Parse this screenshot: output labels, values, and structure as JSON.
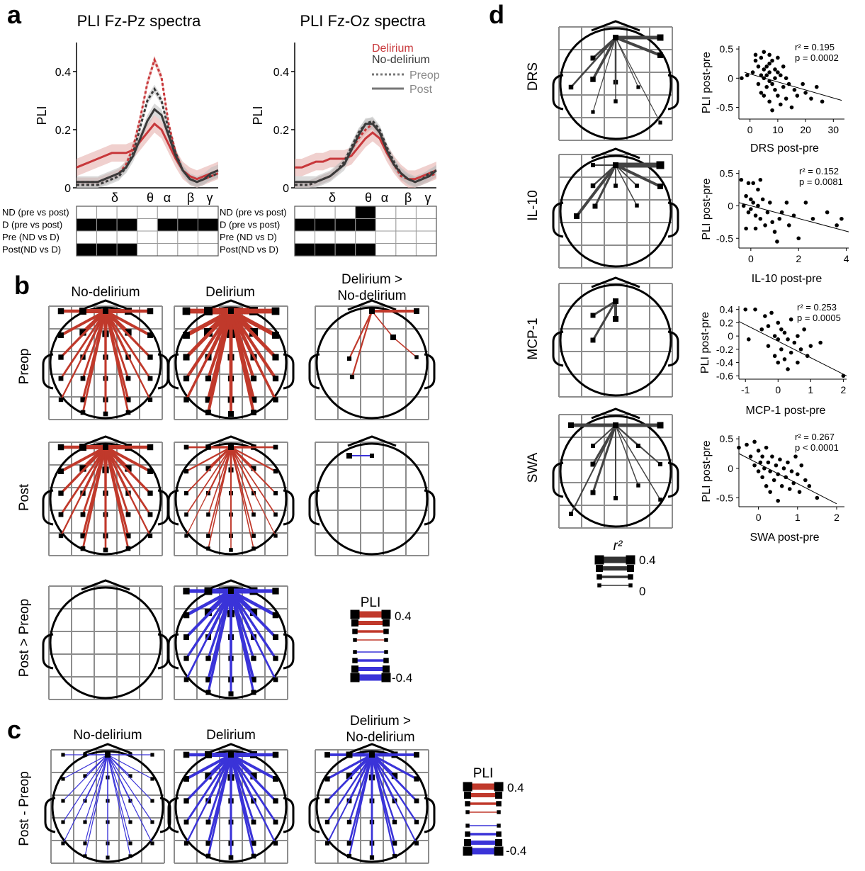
{
  "panel_letters": {
    "a": "a",
    "b": "b",
    "c": "c",
    "d": "d"
  },
  "colors": {
    "delirium": "#c8383b",
    "delirium_band": "#e4a9a6",
    "no_delirium": "#3a3a3a",
    "no_delirium_band": "#bdbdbd",
    "increase": "#c0392b",
    "decrease": "#3a33d8",
    "corr": "#444444",
    "grid": "#8d8d8d"
  },
  "panel_a": {
    "legend": {
      "delirium": "Delirium",
      "no_delirium": "No-delirium",
      "preop": "Preop",
      "post": "Post"
    },
    "band_labels": [
      "δ",
      "θ",
      "α",
      "β",
      "γ"
    ],
    "tables": [
      {
        "rows": [
          {
            "label": "ND  (pre vs post)",
            "filled": [
              0,
              0,
              0,
              0,
              0,
              0,
              0
            ]
          },
          {
            "label": "D    (pre vs post)",
            "filled": [
              1,
              1,
              1,
              0,
              1,
              1,
              1
            ]
          },
          {
            "label": "Pre  (ND vs D)",
            "filled": [
              0,
              0,
              0,
              0,
              0,
              0,
              0
            ]
          },
          {
            "label": "Post(ND vs D)",
            "filled": [
              1,
              1,
              1,
              0,
              0,
              0,
              0
            ]
          }
        ]
      },
      {
        "rows": [
          {
            "label": "ND  (pre vs post)",
            "filled": [
              0,
              0,
              0,
              1,
              0,
              0,
              0
            ]
          },
          {
            "label": "D    (pre vs post)",
            "filled": [
              1,
              1,
              1,
              1,
              0,
              0,
              0
            ]
          },
          {
            "label": "Pre  (ND vs D)",
            "filled": [
              0,
              0,
              0,
              0,
              0,
              0,
              0
            ]
          },
          {
            "label": "Post(ND vs D)",
            "filled": [
              1,
              1,
              1,
              1,
              0,
              0,
              0
            ]
          }
        ]
      }
    ]
  },
  "chart_data": [
    {
      "type": "line",
      "title": "PLI Fz-Pz spectra",
      "xlabel": "",
      "ylabel": "PLI",
      "ylim": [
        0,
        0.5
      ],
      "yticks": [
        "0",
        "0.2",
        "0.4"
      ],
      "x": [
        0,
        1,
        2,
        3,
        4,
        5,
        6,
        7,
        8,
        9,
        10,
        11,
        12,
        13,
        14,
        15,
        16,
        17,
        18,
        19,
        20
      ],
      "series": [
        {
          "name": "Delirium Preop",
          "values": [
            0.02,
            0.02,
            0.02,
            0.02,
            0.03,
            0.04,
            0.05,
            0.08,
            0.14,
            0.24,
            0.36,
            0.44,
            0.38,
            0.22,
            0.12,
            0.06,
            0.03,
            0.02,
            0.03,
            0.04,
            0.05
          ]
        },
        {
          "name": "Delirium Post",
          "values": [
            0.07,
            0.08,
            0.09,
            0.1,
            0.11,
            0.12,
            0.12,
            0.12,
            0.13,
            0.16,
            0.19,
            0.22,
            0.2,
            0.15,
            0.1,
            0.06,
            0.04,
            0.03,
            0.04,
            0.05,
            0.06
          ]
        },
        {
          "name": "No-delirium Preop",
          "values": [
            0.01,
            0.01,
            0.01,
            0.01,
            0.02,
            0.03,
            0.04,
            0.07,
            0.12,
            0.21,
            0.3,
            0.34,
            0.3,
            0.2,
            0.12,
            0.06,
            0.03,
            0.02,
            0.03,
            0.04,
            0.05
          ]
        },
        {
          "name": "No-delirium Post",
          "values": [
            0.02,
            0.02,
            0.02,
            0.02,
            0.03,
            0.04,
            0.05,
            0.07,
            0.11,
            0.17,
            0.23,
            0.27,
            0.25,
            0.18,
            0.11,
            0.06,
            0.03,
            0.02,
            0.03,
            0.05,
            0.06
          ]
        }
      ]
    },
    {
      "type": "line",
      "title": "PLI Fz-Oz spectra",
      "xlabel": "",
      "ylabel": "PLI",
      "ylim": [
        0,
        0.5
      ],
      "yticks": [
        "0",
        "0.2",
        "0.4"
      ],
      "x": [
        0,
        1,
        2,
        3,
        4,
        5,
        6,
        7,
        8,
        9,
        10,
        11,
        12,
        13,
        14,
        15,
        16,
        17,
        18,
        19,
        20
      ],
      "series": [
        {
          "name": "Delirium Preop",
          "values": [
            0.01,
            0.01,
            0.01,
            0.02,
            0.03,
            0.04,
            0.06,
            0.09,
            0.13,
            0.17,
            0.2,
            0.22,
            0.19,
            0.13,
            0.08,
            0.04,
            0.03,
            0.02,
            0.03,
            0.04,
            0.05
          ]
        },
        {
          "name": "Delirium Post",
          "values": [
            0.07,
            0.07,
            0.08,
            0.09,
            0.09,
            0.1,
            0.1,
            0.1,
            0.11,
            0.14,
            0.17,
            0.19,
            0.17,
            0.12,
            0.08,
            0.05,
            0.03,
            0.03,
            0.04,
            0.05,
            0.06
          ]
        },
        {
          "name": "No-delirium Preop",
          "values": [
            0.01,
            0.01,
            0.01,
            0.02,
            0.03,
            0.04,
            0.06,
            0.09,
            0.14,
            0.19,
            0.22,
            0.23,
            0.2,
            0.14,
            0.09,
            0.05,
            0.03,
            0.02,
            0.03,
            0.05,
            0.06
          ]
        },
        {
          "name": "No-delirium Post",
          "values": [
            0.02,
            0.02,
            0.02,
            0.02,
            0.03,
            0.04,
            0.06,
            0.08,
            0.13,
            0.18,
            0.22,
            0.22,
            0.19,
            0.13,
            0.08,
            0.05,
            0.03,
            0.02,
            0.03,
            0.04,
            0.06
          ]
        }
      ]
    },
    {
      "type": "scatter",
      "xlabel": "DRS post-pre",
      "ylabel": "PLI post-pre",
      "xlim": [
        -4,
        34
      ],
      "ylim": [
        -0.7,
        0.55
      ],
      "xticks": [
        "0",
        "10",
        "20",
        "30"
      ],
      "yticks": [
        "0.5",
        "0",
        "-0.5"
      ],
      "stats": [
        "r² = 0.195",
        "p = 0.0002"
      ],
      "fit": [
        [
          -2,
          0.1
        ],
        [
          33,
          -0.38
        ]
      ],
      "points": [
        [
          -3,
          0.0
        ],
        [
          -1,
          0.05
        ],
        [
          1,
          0.1
        ],
        [
          2,
          0.3
        ],
        [
          2,
          0.4
        ],
        [
          3,
          0.2
        ],
        [
          3,
          -0.1
        ],
        [
          4,
          0.05
        ],
        [
          4,
          0.35
        ],
        [
          4,
          -0.25
        ],
        [
          5,
          0.45
        ],
        [
          5,
          0.15
        ],
        [
          5,
          0.0
        ],
        [
          5,
          -0.3
        ],
        [
          6,
          0.2
        ],
        [
          6,
          0.05
        ],
        [
          6,
          -0.15
        ],
        [
          7,
          0.4
        ],
        [
          7,
          0.25
        ],
        [
          7,
          0.1
        ],
        [
          7,
          -0.05
        ],
        [
          7,
          -0.4
        ],
        [
          8,
          0.3
        ],
        [
          8,
          -0.1
        ],
        [
          8,
          -0.55
        ],
        [
          9,
          0.15
        ],
        [
          9,
          0.0
        ],
        [
          9,
          -0.2
        ],
        [
          10,
          0.35
        ],
        [
          10,
          0.1
        ],
        [
          10,
          -0.3
        ],
        [
          11,
          0.05
        ],
        [
          11,
          -0.45
        ],
        [
          12,
          0.2
        ],
        [
          12,
          -0.15
        ],
        [
          13,
          0.0
        ],
        [
          13,
          -0.35
        ],
        [
          14,
          -0.1
        ],
        [
          15,
          -0.5
        ],
        [
          16,
          -0.2
        ],
        [
          17,
          -0.3
        ],
        [
          19,
          -0.1
        ],
        [
          20,
          -0.25
        ],
        [
          22,
          -0.35
        ],
        [
          24,
          -0.15
        ],
        [
          26,
          -0.4
        ]
      ]
    },
    {
      "type": "scatter",
      "xlabel": "IL-10 post-pre",
      "ylabel": "PLI post-pre",
      "xlim": [
        -0.5,
        4.1
      ],
      "ylim": [
        -0.65,
        0.55
      ],
      "xticks": [
        "0",
        "2",
        "4"
      ],
      "yticks": [
        "0.5",
        "0",
        "-0.5"
      ],
      "stats": [
        "r² = 0.152",
        "p = 0.0081"
      ],
      "fit": [
        [
          -0.5,
          0.05
        ],
        [
          4.1,
          -0.4
        ]
      ],
      "points": [
        [
          -0.4,
          0.4
        ],
        [
          -0.3,
          0.0
        ],
        [
          -0.2,
          0.15
        ],
        [
          -0.2,
          -0.35
        ],
        [
          -0.1,
          0.35
        ],
        [
          -0.1,
          -0.1
        ],
        [
          0.0,
          0.1
        ],
        [
          0.0,
          -0.05
        ],
        [
          0.1,
          0.35
        ],
        [
          0.1,
          0.05
        ],
        [
          0.2,
          -0.15
        ],
        [
          0.2,
          -0.35
        ],
        [
          0.3,
          0.25
        ],
        [
          0.3,
          0.0
        ],
        [
          0.4,
          0.4
        ],
        [
          0.4,
          -0.2
        ],
        [
          0.5,
          0.1
        ],
        [
          0.6,
          -0.3
        ],
        [
          0.7,
          -0.1
        ],
        [
          0.8,
          0.05
        ],
        [
          0.9,
          -0.25
        ],
        [
          1.0,
          -0.4
        ],
        [
          1.1,
          -0.55
        ],
        [
          1.2,
          -0.2
        ],
        [
          1.3,
          -0.1
        ],
        [
          1.5,
          0.05
        ],
        [
          1.6,
          -0.3
        ],
        [
          1.8,
          -0.15
        ],
        [
          2.0,
          -0.5
        ],
        [
          2.3,
          0.05
        ],
        [
          2.6,
          -0.2
        ],
        [
          3.2,
          -0.1
        ],
        [
          3.6,
          -0.3
        ],
        [
          3.8,
          -0.2
        ]
      ]
    },
    {
      "type": "scatter",
      "xlabel": "MCP-1 post-pre",
      "ylabel": "PLI post-pre",
      "xlim": [
        -1.2,
        2.1
      ],
      "ylim": [
        -0.65,
        0.45
      ],
      "xticks": [
        "-1",
        "0",
        "1",
        "2"
      ],
      "yticks": [
        "0.4",
        "0.2",
        "0",
        "-0.2",
        "-0.4",
        "-0.6"
      ],
      "stats": [
        "r² = 0.253",
        "p = 0.0005"
      ],
      "fit": [
        [
          -1.2,
          0.22
        ],
        [
          2.1,
          -0.6
        ]
      ],
      "points": [
        [
          -1.0,
          0.4
        ],
        [
          -0.9,
          -0.05
        ],
        [
          -0.7,
          0.4
        ],
        [
          -0.5,
          0.1
        ],
        [
          -0.4,
          0.3
        ],
        [
          -0.3,
          0.15
        ],
        [
          -0.3,
          -0.15
        ],
        [
          -0.2,
          0.35
        ],
        [
          -0.1,
          0.0
        ],
        [
          -0.1,
          -0.3
        ],
        [
          0.0,
          0.2
        ],
        [
          0.0,
          -0.05
        ],
        [
          0.0,
          -0.4
        ],
        [
          0.1,
          0.1
        ],
        [
          0.1,
          -0.2
        ],
        [
          0.2,
          0.05
        ],
        [
          0.2,
          -0.35
        ],
        [
          0.3,
          -0.05
        ],
        [
          0.3,
          -0.5
        ],
        [
          0.4,
          0.25
        ],
        [
          0.4,
          -0.25
        ],
        [
          0.5,
          -0.1
        ],
        [
          0.6,
          0.0
        ],
        [
          0.6,
          -0.4
        ],
        [
          0.7,
          -0.2
        ],
        [
          0.8,
          0.1
        ],
        [
          0.9,
          -0.3
        ],
        [
          1.0,
          -0.15
        ],
        [
          1.3,
          -0.1
        ],
        [
          2.0,
          -0.6
        ]
      ]
    },
    {
      "type": "scatter",
      "xlabel": "SWA post-pre",
      "ylabel": "PLI post-pre",
      "xlim": [
        -0.5,
        2.2
      ],
      "ylim": [
        -0.65,
        0.55
      ],
      "xticks": [
        "0",
        "1",
        "2"
      ],
      "yticks": [
        "0.5",
        "0",
        "-0.5"
      ],
      "stats": [
        "r² = 0.267",
        "p < 0.0001"
      ],
      "fit": [
        [
          -0.5,
          0.25
        ],
        [
          2.0,
          -0.6
        ]
      ],
      "points": [
        [
          -0.5,
          0.35
        ],
        [
          -0.3,
          0.4
        ],
        [
          -0.2,
          0.2
        ],
        [
          -0.1,
          0.45
        ],
        [
          -0.1,
          0.05
        ],
        [
          0.0,
          0.3
        ],
        [
          0.0,
          -0.05
        ],
        [
          0.05,
          0.1
        ],
        [
          0.1,
          0.2
        ],
        [
          0.1,
          -0.15
        ],
        [
          0.15,
          0.0
        ],
        [
          0.2,
          0.35
        ],
        [
          0.2,
          -0.3
        ],
        [
          0.25,
          0.1
        ],
        [
          0.3,
          -0.05
        ],
        [
          0.3,
          -0.4
        ],
        [
          0.35,
          0.2
        ],
        [
          0.4,
          -0.2
        ],
        [
          0.45,
          0.05
        ],
        [
          0.5,
          -0.1
        ],
        [
          0.5,
          -0.55
        ],
        [
          0.55,
          0.15
        ],
        [
          0.6,
          -0.3
        ],
        [
          0.65,
          0.0
        ],
        [
          0.7,
          -0.15
        ],
        [
          0.75,
          0.1
        ],
        [
          0.8,
          -0.35
        ],
        [
          0.85,
          -0.05
        ],
        [
          0.9,
          -0.25
        ],
        [
          0.95,
          0.2
        ],
        [
          1.0,
          -0.1
        ],
        [
          1.05,
          -0.4
        ],
        [
          1.1,
          0.05
        ],
        [
          1.2,
          -0.2
        ],
        [
          1.3,
          -0.3
        ],
        [
          1.5,
          -0.5
        ]
      ]
    }
  ],
  "panel_b": {
    "col_titles": [
      "No-delirium",
      "Delirium",
      "Delirium >\nNo-delirium"
    ],
    "row_labels": [
      "Preop",
      "Post",
      "Post > Preop"
    ],
    "scale_title": "PLI",
    "scale_values": [
      "0.4",
      "-0.4"
    ]
  },
  "panel_c": {
    "col_titles": [
      "No-delirium",
      "Delirium",
      "Delirium >\nNo-delirium"
    ],
    "row_label": "Post - Preop",
    "scale_title": "PLI",
    "scale_values": [
      "0.4",
      "-0.4"
    ]
  },
  "panel_d": {
    "row_labels": [
      "DRS",
      "IL-10",
      "MCP-1",
      "SWA"
    ],
    "scale_title": "r²",
    "scale_values": [
      "0.4",
      "0"
    ]
  }
}
